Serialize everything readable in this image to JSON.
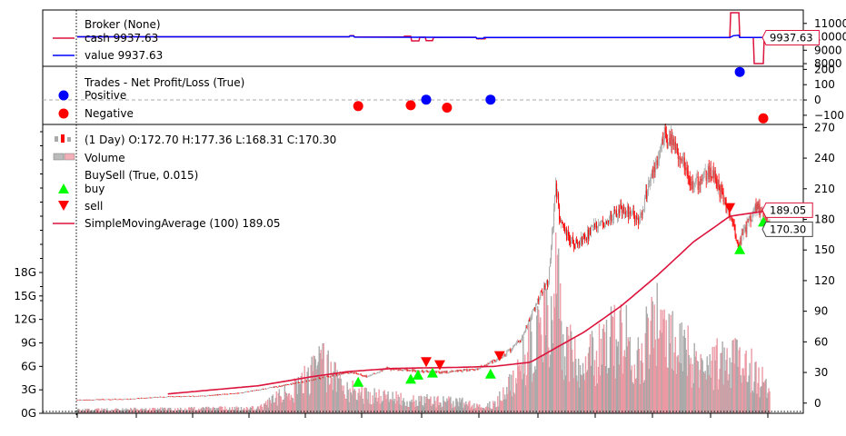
{
  "chart_data": [
    {
      "type": "line",
      "panel": "broker",
      "legend": [
        {
          "label": "Broker (None)",
          "color": ""
        },
        {
          "label": "cash 9937.63",
          "color": "#dc143c"
        },
        {
          "label": "value 9937.63",
          "color": "#0000ff"
        }
      ],
      "y_ticks": [
        "11000",
        "10000",
        "9000",
        "8000"
      ],
      "ylim": [
        7800,
        12000
      ],
      "last_value_label": "9937.63",
      "series": [
        {
          "name": "cash",
          "color": "#dc143c",
          "points": [
            [
              0,
              10000
            ],
            [
              300,
              10000
            ],
            [
              301,
              10080
            ],
            [
              305,
              10080
            ],
            [
              306,
              9980
            ],
            [
              360,
              9990
            ],
            [
              361,
              10040
            ],
            [
              368,
              10040
            ],
            [
              369,
              9700
            ],
            [
              377,
              9700
            ],
            [
              378,
              9970
            ],
            [
              384,
              9970
            ],
            [
              385,
              9720
            ],
            [
              392,
              9720
            ],
            [
              393,
              9950
            ],
            [
              440,
              9960
            ],
            [
              441,
              9850
            ],
            [
              450,
              9850
            ],
            [
              451,
              9940
            ],
            [
              720,
              9940
            ],
            [
              721,
              11800
            ],
            [
              730,
              11800
            ],
            [
              731,
              9950
            ],
            [
              746,
              9950
            ],
            [
              747,
              8000
            ],
            [
              757,
              8000
            ],
            [
              758,
              9937.63
            ],
            [
              765,
              9937.63
            ]
          ]
        },
        {
          "name": "value",
          "color": "#0000ff",
          "points": [
            [
              0,
              10000
            ],
            [
              300,
              10000
            ],
            [
              301,
              10060
            ],
            [
              305,
              10060
            ],
            [
              306,
              9975
            ],
            [
              440,
              9960
            ],
            [
              441,
              9880
            ],
            [
              448,
              9880
            ],
            [
              449,
              9945
            ],
            [
              720,
              9945
            ],
            [
              724,
              10080
            ],
            [
              730,
              10120
            ],
            [
              731,
              9950
            ],
            [
              760,
              9950
            ],
            [
              765,
              9937.63
            ]
          ]
        }
      ]
    },
    {
      "type": "scatter",
      "panel": "trades",
      "legend": [
        {
          "label": "Trades - Net Profit/Loss (True)",
          "color": ""
        },
        {
          "label": "Positive",
          "color": "#0000ff"
        },
        {
          "label": "Negative",
          "color": "#ff0000"
        }
      ],
      "y_ticks": [
        "200",
        "100",
        "0",
        "−100"
      ],
      "ylim": [
        -160,
        220
      ],
      "series": [
        {
          "name": "Positive",
          "color": "#0000ff",
          "points": [
            [
              385,
              2
            ],
            [
              456,
              2
            ],
            [
              731,
              183
            ]
          ]
        },
        {
          "name": "Negative",
          "color": "#ff0000",
          "points": [
            [
              310,
              -40
            ],
            [
              368,
              -35
            ],
            [
              408,
              -50
            ],
            [
              757,
              -120
            ]
          ]
        }
      ]
    },
    {
      "type": "candlestick",
      "panel": "price",
      "legend": [
        {
          "label": "(1 Day) O:172.70 H:177.36 L:168.31 C:170.30"
        },
        {
          "label": "Volume"
        },
        {
          "label": "BuySell (True, 0.015)"
        },
        {
          "label": "buy",
          "color": "#00ff00"
        },
        {
          "label": "sell",
          "color": "#ff0000"
        },
        {
          "label": "SimpleMovingAverage (100) 189.05",
          "color": "#dc143c"
        }
      ],
      "y_ticks_right": [
        "270",
        "240",
        "210",
        "180",
        "150",
        "120",
        "90",
        "60",
        "30",
        "0"
      ],
      "y_ticks_left": [
        "18G",
        "15G",
        "12G",
        "9G",
        "6G",
        "3G",
        "0G"
      ],
      "ylim": [
        -10,
        273
      ],
      "volume_ylim": [
        0,
        18000000000
      ],
      "last_value_labels": [
        "189.05",
        "170.30"
      ],
      "price_anchors": [
        [
          0,
          3
        ],
        [
          60,
          4
        ],
        [
          90,
          6
        ],
        [
          140,
          7
        ],
        [
          180,
          10
        ],
        [
          220,
          16
        ],
        [
          260,
          23
        ],
        [
          300,
          30
        ],
        [
          320,
          26
        ],
        [
          340,
          34
        ],
        [
          370,
          32
        ],
        [
          400,
          30
        ],
        [
          440,
          33
        ],
        [
          470,
          46
        ],
        [
          490,
          62
        ],
        [
          510,
          105
        ],
        [
          520,
          120
        ],
        [
          528,
          212
        ],
        [
          533,
          180
        ],
        [
          540,
          165
        ],
        [
          550,
          155
        ],
        [
          570,
          170
        ],
        [
          600,
          192
        ],
        [
          620,
          180
        ],
        [
          640,
          240
        ],
        [
          648,
          262
        ],
        [
          660,
          250
        ],
        [
          680,
          212
        ],
        [
          700,
          228
        ],
        [
          720,
          185
        ],
        [
          730,
          155
        ],
        [
          740,
          175
        ],
        [
          750,
          195
        ],
        [
          765,
          172
        ]
      ],
      "sma_anchors": [
        [
          100,
          9
        ],
        [
          150,
          13
        ],
        [
          200,
          17
        ],
        [
          260,
          26
        ],
        [
          300,
          31
        ],
        [
          350,
          34
        ],
        [
          420,
          35
        ],
        [
          460,
          36
        ],
        [
          500,
          40
        ],
        [
          530,
          55
        ],
        [
          560,
          70
        ],
        [
          600,
          95
        ],
        [
          640,
          125
        ],
        [
          680,
          158
        ],
        [
          720,
          183
        ],
        [
          765,
          189.05
        ]
      ],
      "volume_anchors": [
        [
          0,
          0.4
        ],
        [
          100,
          0.5
        ],
        [
          200,
          0.6
        ],
        [
          240,
          3
        ],
        [
          270,
          6
        ],
        [
          300,
          3
        ],
        [
          330,
          2
        ],
        [
          400,
          1.5
        ],
        [
          460,
          1
        ],
        [
          480,
          4
        ],
        [
          500,
          8
        ],
        [
          510,
          12
        ],
        [
          520,
          10
        ],
        [
          528,
          18
        ],
        [
          535,
          9
        ],
        [
          560,
          6
        ],
        [
          600,
          10
        ],
        [
          620,
          7
        ],
        [
          640,
          12
        ],
        [
          660,
          8
        ],
        [
          700,
          6
        ],
        [
          730,
          7
        ],
        [
          765,
          3
        ]
      ],
      "buys": [
        [
          310,
          24
        ],
        [
          368,
          27
        ],
        [
          376,
          31
        ],
        [
          392,
          33
        ],
        [
          456,
          32
        ],
        [
          731,
          154
        ],
        [
          757,
          181
        ]
      ],
      "sells": [
        [
          385,
          36
        ],
        [
          400,
          33
        ],
        [
          466,
          42
        ],
        [
          720,
          187
        ],
        [
          765,
          187
        ]
      ]
    }
  ]
}
